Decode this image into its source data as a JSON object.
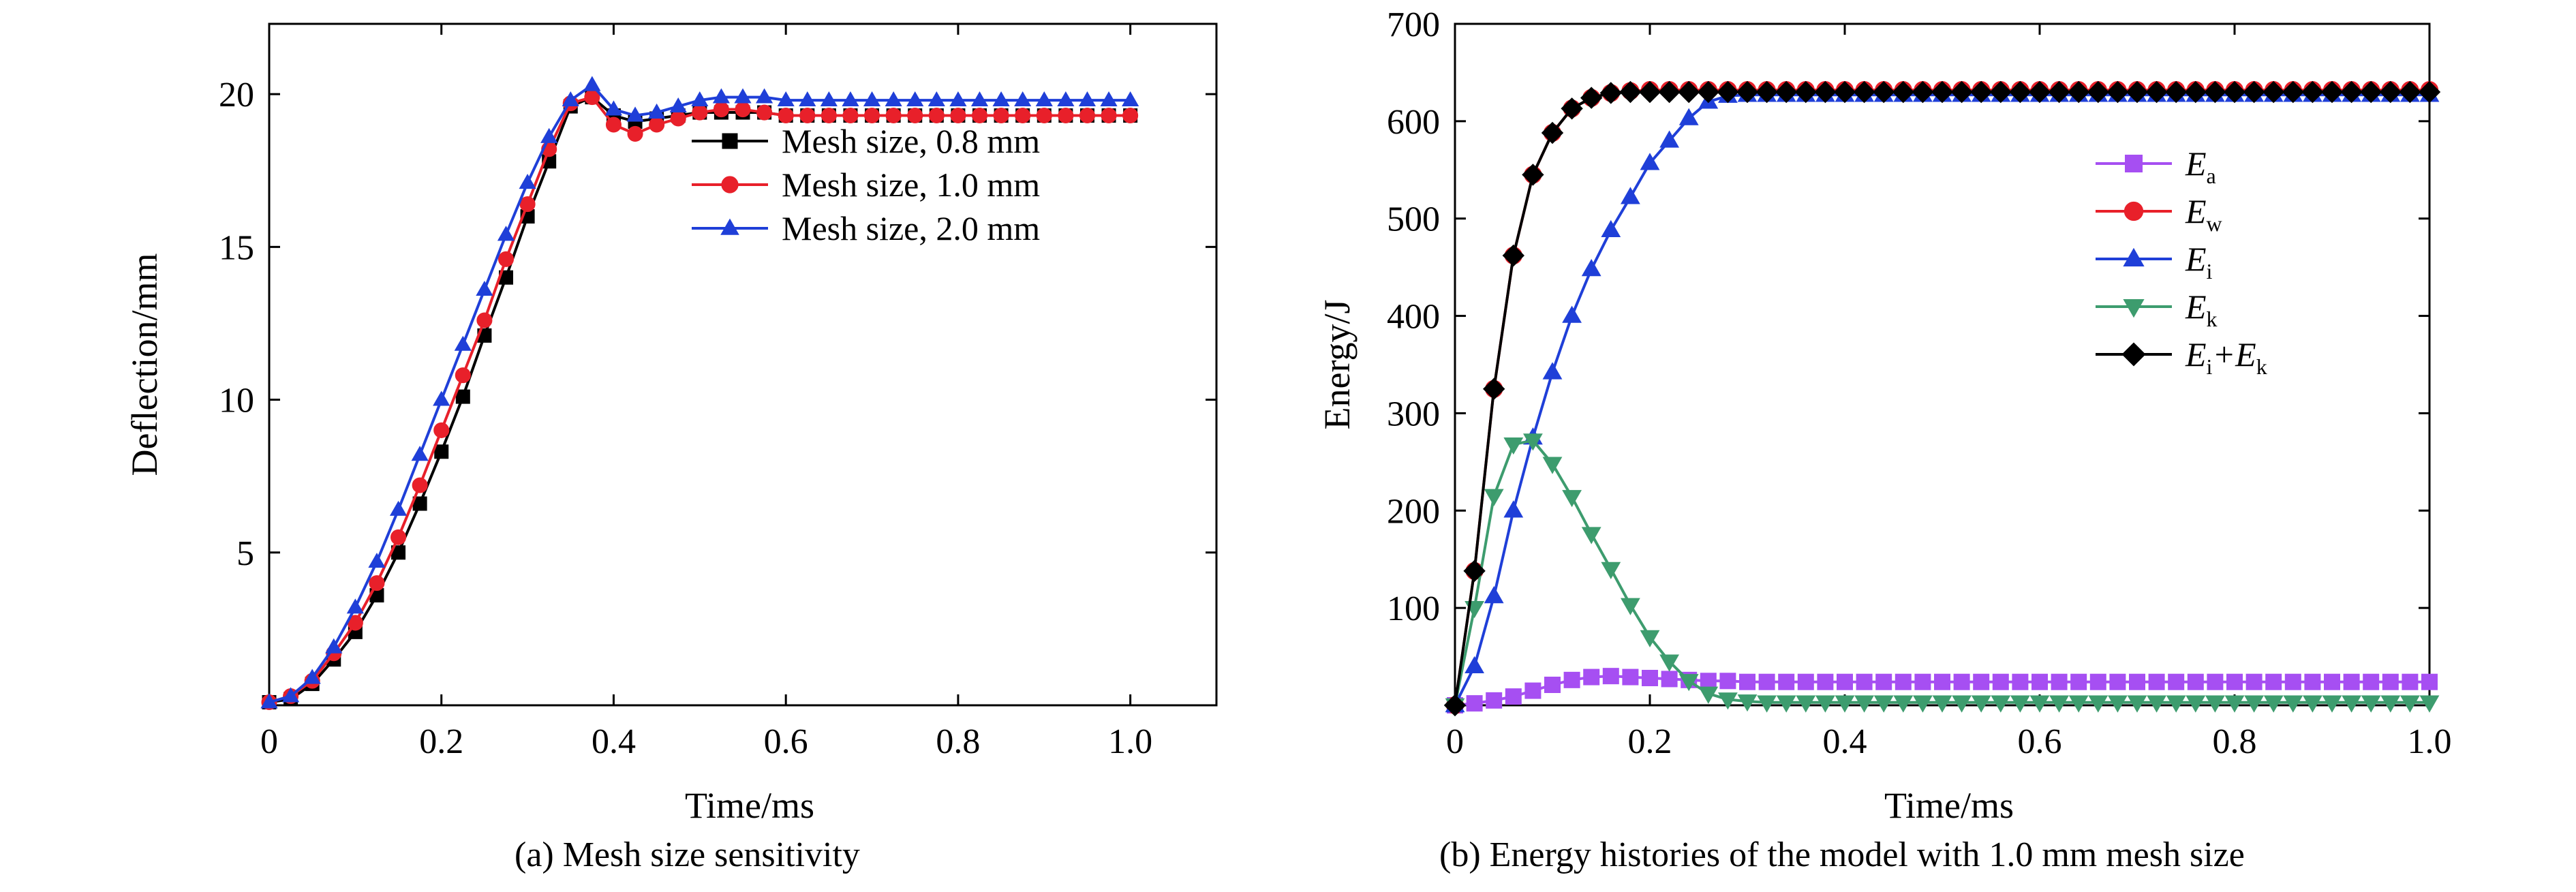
{
  "figure": {
    "caption_a": "(a) Mesh size sensitivity",
    "caption_b": "(b) Energy histories of the model with 1.0 mm mesh size"
  },
  "chart_data": [
    {
      "id": "a",
      "type": "line",
      "xlabel": "Time/ms",
      "ylabel": "Deflection/mm",
      "xlim": [
        0,
        1.1
      ],
      "ylim": [
        0,
        22.3
      ],
      "xticks": [
        0,
        0.2,
        0.4,
        0.6,
        0.8,
        1.0
      ],
      "xtick_labels": [
        "0",
        "0.2",
        "0.4",
        "0.6",
        "0.8",
        "1.0"
      ],
      "yticks": [
        5,
        10,
        15,
        20
      ],
      "ytick_labels": [
        "5",
        "10",
        "15",
        "20"
      ],
      "grid": false,
      "legend_position": "upper-right",
      "series": [
        {
          "name": "Mesh size, 0.8 mm",
          "color": "#000000",
          "marker": "square",
          "x": [
            0.0,
            0.025,
            0.05,
            0.075,
            0.1,
            0.125,
            0.15,
            0.175,
            0.2,
            0.225,
            0.25,
            0.275,
            0.3,
            0.325,
            0.35,
            0.375,
            0.4,
            0.425,
            0.45,
            0.475,
            0.5,
            0.525,
            0.55,
            0.575,
            0.6,
            0.625,
            0.65,
            0.675,
            0.7,
            0.725,
            0.75,
            0.775,
            0.8,
            0.825,
            0.85,
            0.875,
            0.9,
            0.925,
            0.95,
            0.975,
            1.0
          ],
          "y": [
            0.1,
            0.2,
            0.7,
            1.5,
            2.4,
            3.6,
            5.0,
            6.6,
            8.3,
            10.1,
            12.1,
            14.0,
            16.0,
            17.8,
            19.6,
            19.9,
            19.3,
            19.1,
            19.2,
            19.3,
            19.4,
            19.4,
            19.4,
            19.4,
            19.3,
            19.3,
            19.3,
            19.3,
            19.3,
            19.3,
            19.3,
            19.3,
            19.3,
            19.3,
            19.3,
            19.3,
            19.3,
            19.3,
            19.3,
            19.3,
            19.3
          ]
        },
        {
          "name": "Mesh size, 1.0 mm",
          "color": "#e8202a",
          "marker": "circle",
          "x": [
            0.0,
            0.025,
            0.05,
            0.075,
            0.1,
            0.125,
            0.15,
            0.175,
            0.2,
            0.225,
            0.25,
            0.275,
            0.3,
            0.325,
            0.35,
            0.375,
            0.4,
            0.425,
            0.45,
            0.475,
            0.5,
            0.525,
            0.55,
            0.575,
            0.6,
            0.625,
            0.65,
            0.675,
            0.7,
            0.725,
            0.75,
            0.775,
            0.8,
            0.825,
            0.85,
            0.875,
            0.9,
            0.925,
            0.95,
            0.975,
            1.0
          ],
          "y": [
            0.1,
            0.3,
            0.8,
            1.7,
            2.7,
            4.0,
            5.5,
            7.2,
            9.0,
            10.8,
            12.6,
            14.6,
            16.4,
            18.2,
            19.7,
            19.9,
            19.0,
            18.7,
            19.0,
            19.2,
            19.4,
            19.5,
            19.5,
            19.4,
            19.3,
            19.3,
            19.3,
            19.3,
            19.3,
            19.3,
            19.3,
            19.3,
            19.3,
            19.3,
            19.3,
            19.3,
            19.3,
            19.3,
            19.3,
            19.3,
            19.3
          ]
        },
        {
          "name": "Mesh size, 2.0 mm",
          "color": "#1f3fd8",
          "marker": "triangle-up",
          "x": [
            0.0,
            0.025,
            0.05,
            0.075,
            0.1,
            0.125,
            0.15,
            0.175,
            0.2,
            0.225,
            0.25,
            0.275,
            0.3,
            0.325,
            0.35,
            0.375,
            0.4,
            0.425,
            0.45,
            0.475,
            0.5,
            0.525,
            0.55,
            0.575,
            0.6,
            0.625,
            0.65,
            0.675,
            0.7,
            0.725,
            0.75,
            0.775,
            0.8,
            0.825,
            0.85,
            0.875,
            0.9,
            0.925,
            0.95,
            0.975,
            1.0
          ],
          "y": [
            0.1,
            0.3,
            0.9,
            1.9,
            3.2,
            4.7,
            6.4,
            8.2,
            10.0,
            11.8,
            13.6,
            15.4,
            17.1,
            18.6,
            19.8,
            20.3,
            19.5,
            19.3,
            19.4,
            19.6,
            19.8,
            19.9,
            19.9,
            19.9,
            19.8,
            19.8,
            19.8,
            19.8,
            19.8,
            19.8,
            19.8,
            19.8,
            19.8,
            19.8,
            19.8,
            19.8,
            19.8,
            19.8,
            19.8,
            19.8,
            19.8
          ]
        }
      ]
    },
    {
      "id": "b",
      "type": "line",
      "xlabel": "Time/ms",
      "ylabel": "Energy/J",
      "xlim": [
        0,
        1.0
      ],
      "ylim": [
        0,
        700
      ],
      "xticks": [
        0,
        0.2,
        0.4,
        0.6,
        0.8,
        1.0
      ],
      "xtick_labels": [
        "0",
        "0.2",
        "0.4",
        "0.6",
        "0.8",
        "1.0"
      ],
      "yticks": [
        100,
        200,
        300,
        400,
        500,
        600,
        700
      ],
      "ytick_labels": [
        "100",
        "200",
        "300",
        "400",
        "500",
        "600",
        "700"
      ],
      "grid": false,
      "legend_position": "right",
      "series": [
        {
          "name": "Ea",
          "legend_main": "E",
          "legend_sub": "a",
          "color": "#a64ff2",
          "marker": "square",
          "x": [
            0.0,
            0.02,
            0.04,
            0.06,
            0.08,
            0.1,
            0.12,
            0.14,
            0.16,
            0.18,
            0.2,
            0.22,
            0.24,
            0.26,
            0.28,
            0.3,
            0.32,
            0.34,
            0.36,
            0.38,
            0.4,
            0.42,
            0.44,
            0.46,
            0.48,
            0.5,
            0.52,
            0.54,
            0.56,
            0.58,
            0.6,
            0.62,
            0.64,
            0.66,
            0.68,
            0.7,
            0.72,
            0.74,
            0.76,
            0.78,
            0.8,
            0.82,
            0.84,
            0.86,
            0.88,
            0.9,
            0.92,
            0.94,
            0.96,
            0.98,
            1.0
          ],
          "y": [
            0,
            2,
            5,
            9,
            15,
            21,
            26,
            29,
            30,
            29,
            28,
            27,
            26,
            25,
            25,
            24,
            24,
            24,
            24,
            24,
            24,
            24,
            24,
            24,
            24,
            24,
            24,
            24,
            24,
            24,
            24,
            24,
            24,
            24,
            24,
            24,
            24,
            24,
            24,
            24,
            24,
            24,
            24,
            24,
            24,
            24,
            24,
            24,
            24,
            24,
            24
          ]
        },
        {
          "name": "Ew",
          "legend_main": "E",
          "legend_sub": "w",
          "color": "#e8202a",
          "marker": "circle",
          "x": [
            0.0,
            0.02,
            0.04,
            0.06,
            0.08,
            0.1,
            0.12,
            0.14,
            0.16,
            0.18,
            0.2,
            0.22,
            0.24,
            0.26,
            0.28,
            0.3,
            0.32,
            0.34,
            0.36,
            0.38,
            0.4,
            0.42,
            0.44,
            0.46,
            0.48,
            0.5,
            0.52,
            0.54,
            0.56,
            0.58,
            0.6,
            0.62,
            0.64,
            0.66,
            0.68,
            0.7,
            0.72,
            0.74,
            0.76,
            0.78,
            0.8,
            0.82,
            0.84,
            0.86,
            0.88,
            0.9,
            0.92,
            0.94,
            0.96,
            0.98,
            1.0
          ],
          "y": [
            0,
            138,
            325,
            462,
            545,
            588,
            613,
            624,
            629,
            631,
            632,
            632,
            632,
            632,
            632,
            632,
            632,
            632,
            632,
            632,
            632,
            632,
            632,
            632,
            632,
            632,
            632,
            632,
            632,
            632,
            632,
            632,
            632,
            632,
            632,
            632,
            632,
            632,
            632,
            632,
            632,
            632,
            632,
            632,
            632,
            632,
            632,
            632,
            632,
            632,
            632
          ]
        },
        {
          "name": "Ei",
          "legend_main": "E",
          "legend_sub": "i",
          "color": "#1f3fd8",
          "marker": "triangle-up",
          "x": [
            0.0,
            0.02,
            0.04,
            0.06,
            0.08,
            0.1,
            0.12,
            0.14,
            0.16,
            0.18,
            0.2,
            0.22,
            0.24,
            0.26,
            0.28,
            0.3,
            0.32,
            0.34,
            0.36,
            0.38,
            0.4,
            0.42,
            0.44,
            0.46,
            0.48,
            0.5,
            0.52,
            0.54,
            0.56,
            0.58,
            0.6,
            0.62,
            0.64,
            0.66,
            0.68,
            0.7,
            0.72,
            0.74,
            0.76,
            0.78,
            0.8,
            0.82,
            0.84,
            0.86,
            0.88,
            0.9,
            0.92,
            0.94,
            0.96,
            0.98,
            1.0
          ],
          "y": [
            0,
            40,
            112,
            200,
            275,
            342,
            400,
            448,
            488,
            522,
            557,
            580,
            603,
            620,
            626,
            627,
            627,
            627,
            627,
            627,
            627,
            627,
            627,
            627,
            627,
            627,
            627,
            627,
            627,
            627,
            627,
            627,
            627,
            627,
            627,
            627,
            627,
            627,
            627,
            627,
            627,
            627,
            627,
            627,
            627,
            627,
            627,
            627,
            627,
            627,
            627
          ]
        },
        {
          "name": "Ek",
          "legend_main": "E",
          "legend_sub": "k",
          "color": "#3d9c6e",
          "marker": "triangle-down",
          "x": [
            0.0,
            0.02,
            0.04,
            0.06,
            0.08,
            0.1,
            0.12,
            0.14,
            0.16,
            0.18,
            0.2,
            0.22,
            0.24,
            0.26,
            0.28,
            0.3,
            0.32,
            0.34,
            0.36,
            0.38,
            0.4,
            0.42,
            0.44,
            0.46,
            0.48,
            0.5,
            0.52,
            0.54,
            0.56,
            0.58,
            0.6,
            0.62,
            0.64,
            0.66,
            0.68,
            0.7,
            0.72,
            0.74,
            0.76,
            0.78,
            0.8,
            0.82,
            0.84,
            0.86,
            0.88,
            0.9,
            0.92,
            0.94,
            0.96,
            0.98,
            1.0
          ],
          "y": [
            0,
            100,
            215,
            268,
            272,
            248,
            214,
            176,
            140,
            103,
            70,
            45,
            25,
            12,
            6,
            4,
            3,
            3,
            3,
            3,
            3,
            3,
            3,
            3,
            3,
            3,
            3,
            3,
            3,
            3,
            3,
            3,
            3,
            3,
            3,
            3,
            3,
            3,
            3,
            3,
            3,
            3,
            3,
            3,
            3,
            3,
            3,
            3,
            3,
            3,
            3
          ]
        },
        {
          "name": "Ei+Ek",
          "legend_main": "E",
          "legend_sub": "i",
          "legend_plus": "+E",
          "legend_sub2": "k",
          "color": "#000000",
          "marker": "diamond",
          "x": [
            0.0,
            0.02,
            0.04,
            0.06,
            0.08,
            0.1,
            0.12,
            0.14,
            0.16,
            0.18,
            0.2,
            0.22,
            0.24,
            0.26,
            0.28,
            0.3,
            0.32,
            0.34,
            0.36,
            0.38,
            0.4,
            0.42,
            0.44,
            0.46,
            0.48,
            0.5,
            0.52,
            0.54,
            0.56,
            0.58,
            0.6,
            0.62,
            0.64,
            0.66,
            0.68,
            0.7,
            0.72,
            0.74,
            0.76,
            0.78,
            0.8,
            0.82,
            0.84,
            0.86,
            0.88,
            0.9,
            0.92,
            0.94,
            0.96,
            0.98,
            1.0
          ],
          "y": [
            0,
            138,
            325,
            462,
            545,
            588,
            613,
            624,
            629,
            630,
            630,
            630,
            630,
            630,
            630,
            630,
            630,
            630,
            630,
            630,
            630,
            630,
            630,
            630,
            630,
            630,
            630,
            630,
            630,
            630,
            630,
            630,
            630,
            630,
            630,
            630,
            630,
            630,
            630,
            630,
            630,
            630,
            630,
            630,
            630,
            630,
            630,
            630,
            630,
            630,
            630
          ]
        }
      ]
    }
  ]
}
